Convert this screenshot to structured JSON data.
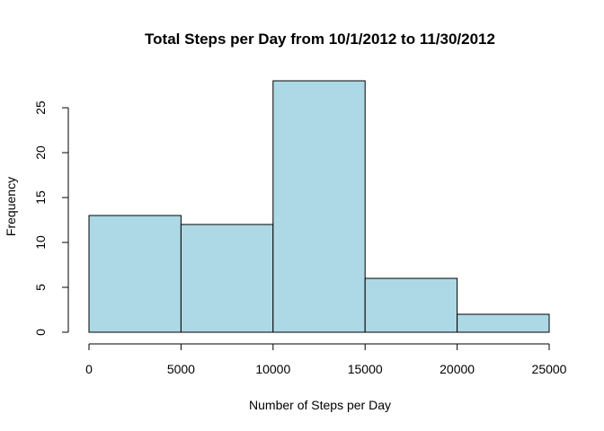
{
  "chart_data": {
    "type": "bar",
    "title": "Total Steps per Day from 10/1/2012 to 11/30/2012",
    "xlabel": "Number of Steps per Day",
    "ylabel": "Frequency",
    "bins": [
      {
        "from": 0,
        "to": 5000,
        "count": 13
      },
      {
        "from": 5000,
        "to": 10000,
        "count": 12
      },
      {
        "from": 10000,
        "to": 15000,
        "count": 28
      },
      {
        "from": 15000,
        "to": 20000,
        "count": 6
      },
      {
        "from": 20000,
        "to": 25000,
        "count": 2
      }
    ],
    "xlim": [
      0,
      25000
    ],
    "ylim": [
      0,
      28
    ],
    "x_ticks": [
      0,
      5000,
      10000,
      15000,
      20000,
      25000
    ],
    "x_tick_labels": [
      "0",
      "5000",
      "10000",
      "15000",
      "20000",
      "25000"
    ],
    "y_ticks": [
      0,
      5,
      10,
      15,
      20,
      25
    ],
    "y_tick_labels": [
      "0",
      "5",
      "10",
      "15",
      "20",
      "25"
    ],
    "bar_color": "#ADD8E6",
    "grid": false,
    "legend": "none"
  }
}
